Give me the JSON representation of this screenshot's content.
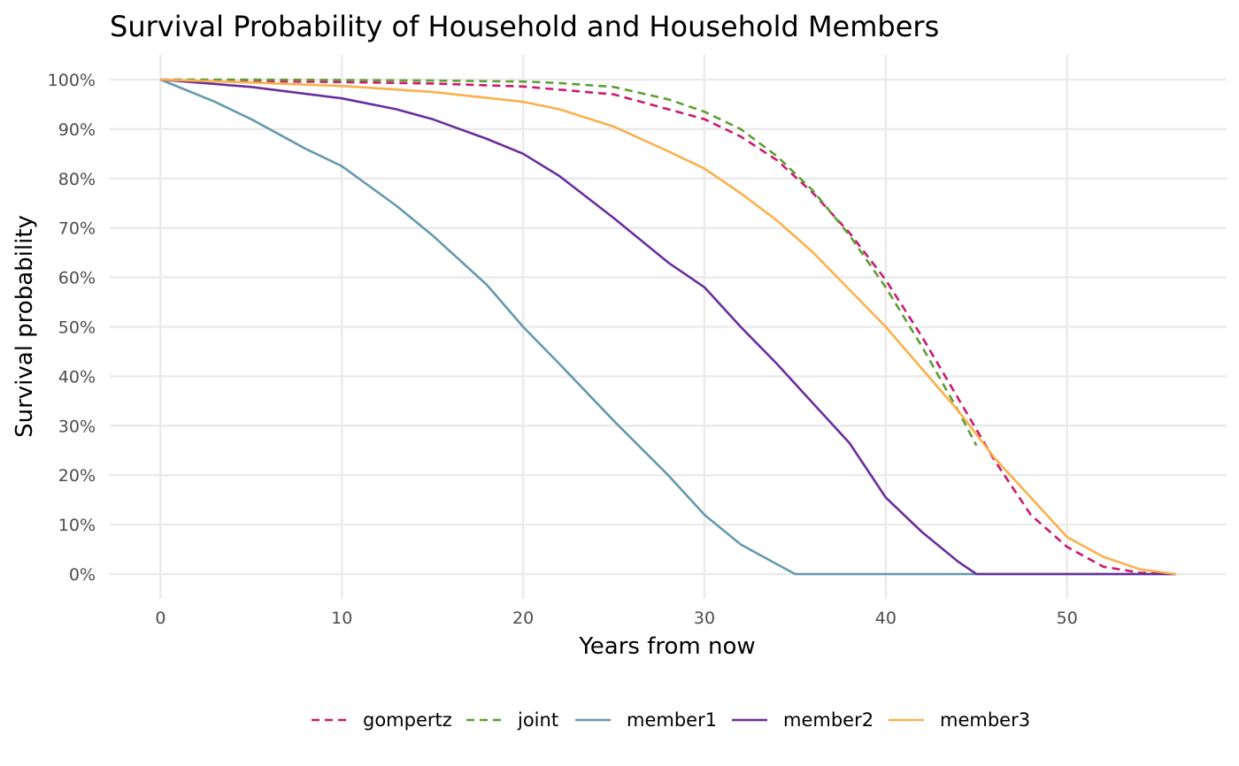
{
  "chart_data": {
    "type": "line",
    "title": "Survival Probability of Household and Household Members",
    "xlabel": "Years from now",
    "ylabel": "Survival probability",
    "xlim": [
      -2.8,
      58.8
    ],
    "ylim": [
      -0.05,
      1.05
    ],
    "x_ticks": [
      0,
      10,
      20,
      30,
      40,
      50
    ],
    "x_tick_labels": [
      "0",
      "10",
      "20",
      "30",
      "40",
      "50"
    ],
    "y_ticks": [
      0,
      0.1,
      0.2,
      0.3,
      0.4,
      0.5,
      0.6,
      0.7,
      0.8,
      0.9,
      1.0
    ],
    "y_tick_labels": [
      "0%",
      "10%",
      "20%",
      "30%",
      "40%",
      "50%",
      "60%",
      "70%",
      "80%",
      "90%",
      "100%"
    ],
    "grid": true,
    "legend_position": "bottom",
    "series": [
      {
        "name": "gompertz",
        "color": "#CC1A6E",
        "dash": "dashed",
        "points": [
          [
            0,
            1.0
          ],
          [
            5,
            0.997
          ],
          [
            10,
            0.995
          ],
          [
            15,
            0.992
          ],
          [
            20,
            0.986
          ],
          [
            25,
            0.97
          ],
          [
            30,
            0.92
          ],
          [
            32,
            0.885
          ],
          [
            34,
            0.837
          ],
          [
            36,
            0.77
          ],
          [
            38,
            0.69
          ],
          [
            40,
            0.595
          ],
          [
            42,
            0.48
          ],
          [
            44,
            0.355
          ],
          [
            46,
            0.23
          ],
          [
            48,
            0.12
          ],
          [
            50,
            0.055
          ],
          [
            52,
            0.015
          ],
          [
            54,
            0.003
          ],
          [
            56,
            0.0
          ]
        ]
      },
      {
        "name": "joint",
        "color": "#5E9E33",
        "dash": "dashed",
        "points": [
          [
            0,
            1.0
          ],
          [
            5,
            1.0
          ],
          [
            10,
            0.999
          ],
          [
            15,
            0.998
          ],
          [
            20,
            0.996
          ],
          [
            22,
            0.993
          ],
          [
            25,
            0.985
          ],
          [
            28,
            0.96
          ],
          [
            30,
            0.935
          ],
          [
            32,
            0.9
          ],
          [
            34,
            0.845
          ],
          [
            36,
            0.775
          ],
          [
            38,
            0.685
          ],
          [
            40,
            0.58
          ],
          [
            42,
            0.46
          ],
          [
            44,
            0.33
          ],
          [
            45,
            0.26
          ]
        ]
      },
      {
        "name": "member1",
        "color": "#6699AE",
        "dash": "solid",
        "points": [
          [
            0,
            1.0
          ],
          [
            3,
            0.955
          ],
          [
            5,
            0.92
          ],
          [
            8,
            0.86
          ],
          [
            10,
            0.825
          ],
          [
            13,
            0.745
          ],
          [
            15,
            0.685
          ],
          [
            18,
            0.585
          ],
          [
            20,
            0.5
          ],
          [
            22,
            0.425
          ],
          [
            25,
            0.31
          ],
          [
            28,
            0.2
          ],
          [
            30,
            0.12
          ],
          [
            32,
            0.06
          ],
          [
            34,
            0.02
          ],
          [
            35,
            0.0
          ],
          [
            56,
            0.0
          ]
        ]
      },
      {
        "name": "member2",
        "color": "#6A2E9C",
        "dash": "solid",
        "points": [
          [
            0,
            1.0
          ],
          [
            5,
            0.985
          ],
          [
            10,
            0.962
          ],
          [
            13,
            0.94
          ],
          [
            15,
            0.92
          ],
          [
            18,
            0.88
          ],
          [
            20,
            0.85
          ],
          [
            22,
            0.805
          ],
          [
            25,
            0.72
          ],
          [
            28,
            0.63
          ],
          [
            30,
            0.58
          ],
          [
            32,
            0.5
          ],
          [
            34,
            0.425
          ],
          [
            36,
            0.345
          ],
          [
            38,
            0.265
          ],
          [
            40,
            0.155
          ],
          [
            42,
            0.085
          ],
          [
            44,
            0.025
          ],
          [
            45,
            0.0
          ],
          [
            56,
            0.0
          ]
        ]
      },
      {
        "name": "member3",
        "color": "#FBB04C",
        "dash": "solid",
        "points": [
          [
            0,
            1.0
          ],
          [
            5,
            0.994
          ],
          [
            10,
            0.987
          ],
          [
            15,
            0.975
          ],
          [
            20,
            0.955
          ],
          [
            22,
            0.94
          ],
          [
            25,
            0.905
          ],
          [
            28,
            0.855
          ],
          [
            30,
            0.82
          ],
          [
            32,
            0.77
          ],
          [
            34,
            0.715
          ],
          [
            36,
            0.65
          ],
          [
            38,
            0.575
          ],
          [
            40,
            0.5
          ],
          [
            42,
            0.415
          ],
          [
            44,
            0.33
          ],
          [
            46,
            0.235
          ],
          [
            48,
            0.155
          ],
          [
            50,
            0.075
          ],
          [
            52,
            0.035
          ],
          [
            54,
            0.01
          ],
          [
            56,
            0.0
          ]
        ]
      }
    ]
  }
}
